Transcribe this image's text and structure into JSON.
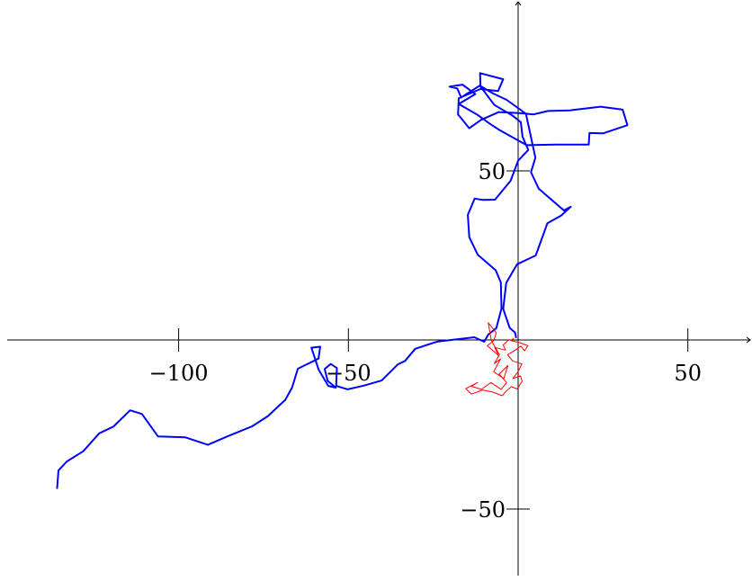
{
  "chart_data": {
    "type": "line",
    "title": "",
    "xlabel": "",
    "ylabel": "",
    "xlim": [
      -137,
      70
    ],
    "ylim": [
      -70,
      100
    ],
    "grid": false,
    "x_ticks": [
      {
        "value": -100,
        "label": "−100"
      },
      {
        "value": -50,
        "label": "−50"
      },
      {
        "value": 50,
        "label": "50"
      }
    ],
    "y_ticks": [
      {
        "value": 50,
        "label": "50"
      },
      {
        "value": -50,
        "label": "−50"
      }
    ],
    "series": [
      {
        "color": "#0000ff",
        "stroke_width": 2,
        "points": [
          [
            -135.8,
            -43.8
          ],
          [
            -135.4,
            -38.6
          ],
          [
            -132.9,
            -35.9
          ],
          [
            -128.1,
            -32.9
          ],
          [
            -123.4,
            -27.6
          ],
          [
            -119.2,
            -25.6
          ],
          [
            -114.3,
            -20.8
          ],
          [
            -110.8,
            -21.9
          ],
          [
            -106.1,
            -28.5
          ],
          [
            -98.0,
            -28.8
          ],
          [
            -91.4,
            -31.0
          ],
          [
            -85.4,
            -28.4
          ],
          [
            -78.3,
            -25.5
          ],
          [
            -73.7,
            -22.5
          ],
          [
            -68.6,
            -17.7
          ],
          [
            -66.6,
            -14.1
          ],
          [
            -64.9,
            -8.5
          ],
          [
            -58.8,
            -5.5
          ],
          [
            -58.3,
            -2.0
          ],
          [
            -60.9,
            -2.3
          ],
          [
            -58.8,
            -8.7
          ],
          [
            -55.9,
            -13.6
          ],
          [
            -53.7,
            -14.1
          ],
          [
            -56.1,
            -12.1
          ],
          [
            -57.0,
            -8.6
          ],
          [
            -55.2,
            -7.1
          ],
          [
            -53.4,
            -8.3
          ],
          [
            -53.6,
            -13.6
          ],
          [
            -50.2,
            -14.6
          ],
          [
            -45.5,
            -13.5
          ],
          [
            -40.2,
            -12.0
          ],
          [
            -35.4,
            -7.2
          ],
          [
            -33.3,
            -6.2
          ],
          [
            -30.3,
            -2.6
          ],
          [
            -23.9,
            -0.5
          ],
          [
            -12.9,
            0.8
          ],
          [
            -10.0,
            -0.5
          ],
          [
            -8.8,
            1.6
          ],
          [
            -6.4,
            3.5
          ],
          [
            -4.9,
            9.3
          ],
          [
            -5.1,
            17.0
          ],
          [
            -6.6,
            20.6
          ],
          [
            -11.9,
            25.2
          ],
          [
            -14.4,
            30.4
          ],
          [
            -14.8,
            37.0
          ],
          [
            -12.8,
            41.8
          ],
          [
            -10.4,
            41.4
          ],
          [
            -6.8,
            41.5
          ],
          [
            -2.2,
            47.1
          ],
          [
            0.0,
            53.0
          ],
          [
            3.0,
            56.2
          ],
          [
            1.3,
            60.1
          ],
          [
            0.8,
            64.4
          ],
          [
            -1.6,
            66.3
          ],
          [
            -7.0,
            69.5
          ],
          [
            -11.3,
            75.2
          ],
          [
            -16.8,
            71.7
          ],
          [
            -17.9,
            74.4
          ],
          [
            -20.2,
            74.9
          ],
          [
            -16.4,
            75.5
          ],
          [
            -12.6,
            72.7
          ],
          [
            -17.5,
            69.8
          ],
          [
            -12.0,
            66.6
          ],
          [
            -8.3,
            63.9
          ],
          [
            -5.7,
            62.2
          ],
          [
            2.5,
            57.6
          ],
          [
            11.0,
            57.8
          ],
          [
            20.8,
            57.8
          ],
          [
            21.0,
            61.2
          ],
          [
            25.0,
            61.1
          ],
          [
            32.2,
            63.5
          ],
          [
            30.8,
            68.1
          ],
          [
            24.3,
            69.0
          ],
          [
            15.3,
            67.9
          ],
          [
            8.8,
            67.7
          ],
          [
            4.5,
            66.7
          ],
          [
            0.5,
            67.1
          ],
          [
            -5.7,
            67.4
          ],
          [
            -10.9,
            65.1
          ],
          [
            -14.4,
            62.6
          ],
          [
            -17.7,
            66.7
          ],
          [
            -17.5,
            71.5
          ],
          [
            -11.1,
            74.2
          ],
          [
            -5.9,
            73.6
          ],
          [
            -4.4,
            77.1
          ],
          [
            -11.2,
            78.9
          ],
          [
            -11.1,
            75.1
          ],
          [
            -7.4,
            72.9
          ],
          [
            -3.4,
            71.0
          ],
          [
            2.3,
            66.9
          ],
          [
            5.1,
            53.9
          ],
          [
            3.8,
            49.6
          ],
          [
            6.1,
            44.7
          ],
          [
            13.5,
            38.3
          ],
          [
            15.5,
            39.4
          ],
          [
            12.7,
            36.8
          ],
          [
            8.6,
            34.5
          ],
          [
            7.1,
            30.3
          ],
          [
            5.2,
            25.0
          ],
          [
            -0.3,
            22.4
          ],
          [
            -3.5,
            16.9
          ],
          [
            -4.4,
            9.2
          ],
          [
            -2.5,
            3.6
          ],
          [
            -0.9,
            2.2
          ],
          [
            -0.6,
            0.8
          ]
        ]
      },
      {
        "color": "#ff0000",
        "stroke_width": 1,
        "points": [
          [
            -2.7,
            0.1
          ],
          [
            -4.4,
            -1.5
          ],
          [
            -3.7,
            -3.0
          ],
          [
            -6.9,
            -2.2
          ],
          [
            -5.8,
            -4.6
          ],
          [
            -9.1,
            -1.7
          ],
          [
            -7.2,
            -0.2
          ],
          [
            -6.4,
            2.1
          ],
          [
            -8.8,
            5.1
          ],
          [
            -7.9,
            -0.2
          ],
          [
            -5.5,
            -4.3
          ],
          [
            -7.0,
            -7.0
          ],
          [
            -5.2,
            -5.6
          ],
          [
            -7.2,
            -9.4
          ],
          [
            -4.2,
            -11.4
          ],
          [
            -3.0,
            -7.5
          ],
          [
            -5.6,
            -10.1
          ],
          [
            -3.4,
            -12.6
          ],
          [
            -5.0,
            -14.6
          ],
          [
            -8.0,
            -12.6
          ],
          [
            -10.8,
            -14.6
          ],
          [
            -13.8,
            -13.7
          ],
          [
            -12.0,
            -12.6
          ],
          [
            -15.4,
            -14.4
          ],
          [
            -13.8,
            -16.0
          ],
          [
            -10.4,
            -14.8
          ],
          [
            -7.5,
            -15.4
          ],
          [
            -4.7,
            -16.5
          ],
          [
            -3.6,
            -15.2
          ],
          [
            -2.0,
            -13.8
          ],
          [
            -0.3,
            -14.5
          ],
          [
            1.2,
            -12.2
          ],
          [
            0.7,
            -10.6
          ],
          [
            -1.6,
            -11.4
          ],
          [
            -0.1,
            -9.5
          ],
          [
            1.1,
            -7.1
          ],
          [
            -1.6,
            -6.2
          ],
          [
            -3.1,
            -4.4
          ],
          [
            -1.0,
            -3.1
          ],
          [
            0.8,
            -1.8
          ],
          [
            1.9,
            -3.2
          ],
          [
            2.9,
            -1.7
          ],
          [
            0.5,
            -0.8
          ],
          [
            -2.1,
            -0.2
          ],
          [
            -1.3,
            0.5
          ]
        ]
      }
    ]
  }
}
